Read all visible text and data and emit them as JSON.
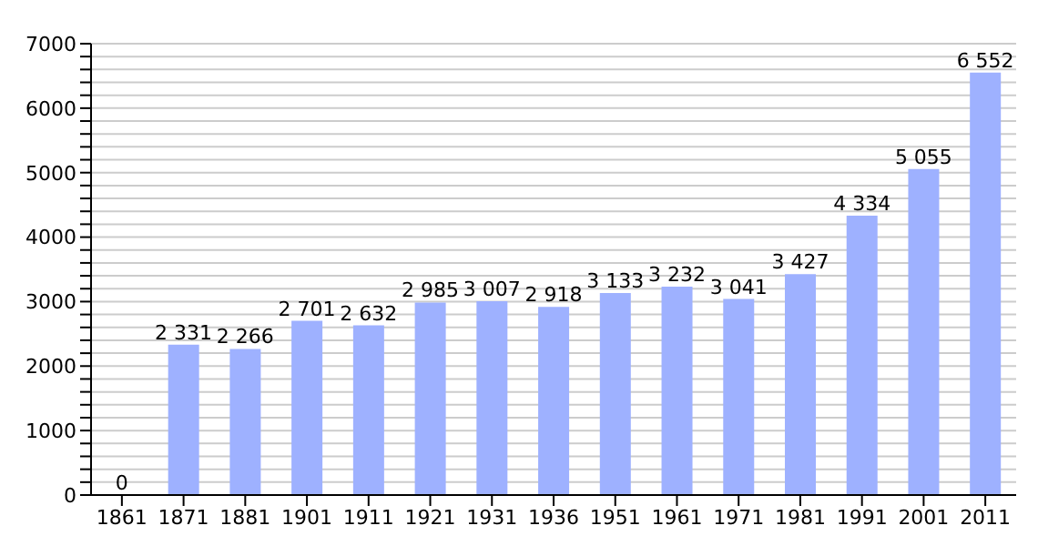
{
  "chart_data": {
    "type": "bar",
    "categories": [
      "1861",
      "1871",
      "1881",
      "1901",
      "1911",
      "1921",
      "1931",
      "1936",
      "1951",
      "1961",
      "1971",
      "1981",
      "1991",
      "2001",
      "2011"
    ],
    "values": [
      0,
      2331,
      2266,
      2701,
      2632,
      2985,
      3007,
      2918,
      3133,
      3232,
      3041,
      3427,
      4334,
      5055,
      6552
    ],
    "value_labels": [
      "0",
      "2 331",
      "2 266",
      "2 701",
      "2 632",
      "2 985",
      "3 007",
      "2 918",
      "3 133",
      "3 232",
      "3 041",
      "3 427",
      "4 334",
      "5 055",
      "6 552"
    ],
    "color": "#9eb1ff",
    "ylim": [
      0,
      7000
    ],
    "yticks": [
      0,
      {
        "value": 200,
        "label": null
      },
      {
        "value": 400,
        "label": null
      },
      {
        "value": 600,
        "label": null
      },
      {
        "value": 800,
        "label": null
      },
      1000,
      {
        "value": 1200,
        "label": null
      },
      {
        "value": 1400,
        "label": null
      },
      {
        "value": 1600,
        "label": null
      },
      {
        "value": 1800,
        "label": null
      },
      2000,
      {
        "value": 2200,
        "label": null
      },
      {
        "value": 2400,
        "label": null
      },
      {
        "value": 2600,
        "label": null
      },
      {
        "value": 2800,
        "label": null
      },
      3000,
      {
        "value": 3200,
        "label": null
      },
      {
        "value": 3400,
        "label": null
      },
      {
        "value": 3600,
        "label": null
      },
      {
        "value": 3800,
        "label": null
      },
      4000,
      {
        "value": 4200,
        "label": null
      },
      {
        "value": 4400,
        "label": null
      },
      {
        "value": 4600,
        "label": null
      },
      {
        "value": 4800,
        "label": null
      },
      5000,
      {
        "value": 5200,
        "label": null
      },
      {
        "value": 5400,
        "label": null
      },
      {
        "value": 5600,
        "label": null
      },
      {
        "value": 5800,
        "label": null
      },
      6000,
      {
        "value": 6200,
        "label": null
      },
      {
        "value": 6400,
        "label": null
      },
      {
        "value": 6600,
        "label": null
      },
      {
        "value": 6800,
        "label": null
      },
      7000
    ],
    "grid": "y"
  }
}
